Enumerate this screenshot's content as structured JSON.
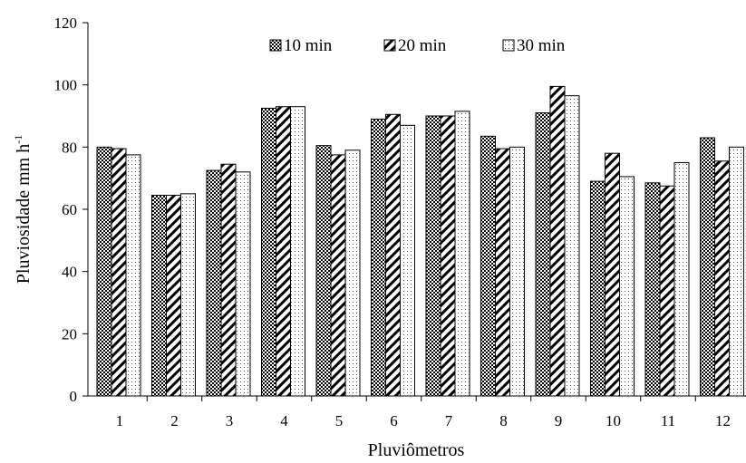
{
  "chart_data": {
    "type": "bar",
    "xlabel": "Pluviômetros",
    "ylabel": "Pluviosidade mm h",
    "ylabel_sup": "-1",
    "ylim": [
      0,
      120
    ],
    "yticks": [
      "0",
      "20",
      "40",
      "60",
      "80",
      "100",
      "120"
    ],
    "grid": false,
    "legend_position": "top",
    "categories": [
      "1",
      "2",
      "3",
      "4",
      "5",
      "6",
      "7",
      "8",
      "9",
      "10",
      "11",
      "12"
    ],
    "series": [
      {
        "name": "10 min",
        "pattern": "crosshatch",
        "values": [
          80,
          64.5,
          72.5,
          92.5,
          80.5,
          89,
          90,
          83.5,
          91,
          69,
          68.5,
          83
        ]
      },
      {
        "name": "20 min",
        "pattern": "diagonal",
        "values": [
          79.5,
          64.5,
          74.5,
          93,
          77.5,
          90.5,
          90,
          79.5,
          99.5,
          78,
          67.5,
          75.5
        ]
      },
      {
        "name": "30 min",
        "pattern": "dotted",
        "values": [
          77.5,
          65,
          72,
          93,
          79,
          87,
          91.5,
          80,
          96.5,
          70.5,
          75,
          80
        ]
      }
    ]
  }
}
